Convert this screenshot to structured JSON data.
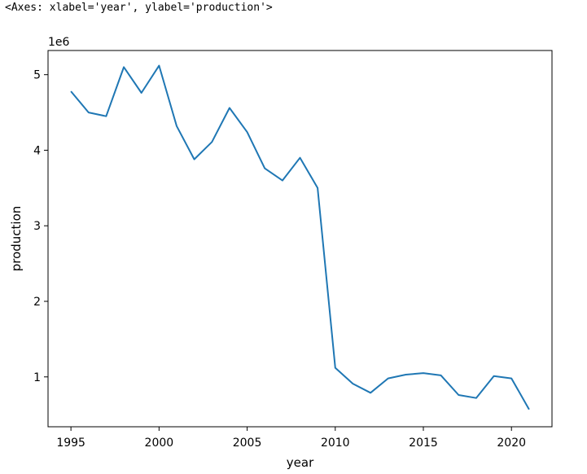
{
  "output_repr": "<Axes: xlabel='year', ylabel='production'>",
  "colors": {
    "line": "#1f77b4",
    "axes": "#000000",
    "background": "#ffffff"
  },
  "chart_data": {
    "type": "line",
    "title": "",
    "xlabel": "year",
    "ylabel": "production",
    "offset_text": "1e6",
    "grid": false,
    "xlim": [
      1993.7,
      2022.3
    ],
    "ylim": [
      0.34,
      5.32
    ],
    "xticks": [
      1995,
      2000,
      2005,
      2010,
      2015,
      2020
    ],
    "yticks": [
      1,
      2,
      3,
      4,
      5
    ],
    "series": [
      {
        "x": [
          1995,
          1996,
          1997,
          1998,
          1999,
          2000,
          2001,
          2002,
          2003,
          2004,
          2005,
          2006,
          2007,
          2008,
          2009,
          2010,
          2011,
          2012,
          2013,
          2014,
          2015,
          2016,
          2017,
          2018,
          2019,
          2020,
          2021
        ],
        "values": [
          4.78,
          4.5,
          4.45,
          5.1,
          4.76,
          5.12,
          4.32,
          3.88,
          4.11,
          4.56,
          4.24,
          3.76,
          3.6,
          3.9,
          3.5,
          1.12,
          0.91,
          0.79,
          0.98,
          1.03,
          1.05,
          1.02,
          0.76,
          0.72,
          1.01,
          0.98,
          0.57
        ]
      }
    ]
  }
}
